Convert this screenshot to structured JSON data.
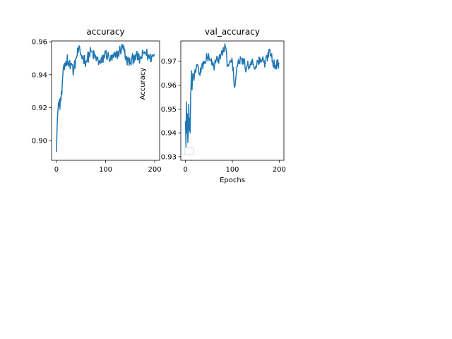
{
  "chart_data": [
    {
      "type": "line",
      "title": "accuracy",
      "xlabel": "",
      "ylabel": "",
      "xlim": [
        -10,
        210
      ],
      "ylim": [
        0.888,
        0.9605
      ],
      "xticks": [
        0,
        100,
        200
      ],
      "yticks": [
        0.9,
        0.92,
        0.94,
        0.96
      ],
      "ytick_labels": [
        "0.90",
        "0.92",
        "0.94",
        "0.96"
      ],
      "series_color": "#1f77b4",
      "keypoints": [
        [
          0,
          0.893
        ],
        [
          1,
          0.905
        ],
        [
          2,
          0.914
        ],
        [
          3,
          0.918
        ],
        [
          4,
          0.923
        ],
        [
          5,
          0.921
        ],
        [
          6,
          0.925
        ],
        [
          7,
          0.919
        ],
        [
          8,
          0.926
        ],
        [
          9,
          0.924
        ],
        [
          10,
          0.93
        ],
        [
          11,
          0.928
        ],
        [
          12,
          0.936
        ],
        [
          13,
          0.94
        ],
        [
          14,
          0.944
        ],
        [
          15,
          0.946
        ],
        [
          16,
          0.943
        ],
        [
          17,
          0.947
        ],
        [
          18,
          0.945
        ],
        [
          19,
          0.948
        ],
        [
          20,
          0.946
        ],
        [
          22,
          0.952
        ],
        [
          25,
          0.945
        ],
        [
          30,
          0.947
        ],
        [
          35,
          0.942
        ],
        [
          40,
          0.95
        ],
        [
          45,
          0.955
        ],
        [
          50,
          0.952
        ],
        [
          60,
          0.948
        ],
        [
          70,
          0.954
        ],
        [
          80,
          0.95
        ],
        [
          90,
          0.947
        ],
        [
          100,
          0.953
        ],
        [
          110,
          0.949
        ],
        [
          120,
          0.951
        ],
        [
          130,
          0.955
        ],
        [
          137,
          0.958
        ],
        [
          140,
          0.95
        ],
        [
          150,
          0.947
        ],
        [
          160,
          0.952
        ],
        [
          170,
          0.949
        ],
        [
          180,
          0.954
        ],
        [
          190,
          0.95
        ],
        [
          200,
          0.952
        ]
      ],
      "noise": 0.0035
    },
    {
      "type": "line",
      "title": "val_accuracy",
      "xlabel": "Epochs",
      "ylabel": "Accuracy",
      "xlim": [
        -10,
        210
      ],
      "ylim": [
        0.9285,
        0.9785
      ],
      "xticks": [
        0,
        100,
        200
      ],
      "yticks": [
        0.93,
        0.94,
        0.95,
        0.96,
        0.97
      ],
      "ytick_labels": [
        "0.93",
        "0.94",
        "0.95",
        "0.96",
        "0.97"
      ],
      "series_color": "#1f77b4",
      "legend": {
        "placement": "lower-left",
        "entries": []
      },
      "keypoints": [
        [
          0,
          0.945
        ],
        [
          1,
          0.934
        ],
        [
          2,
          0.953
        ],
        [
          3,
          0.94
        ],
        [
          4,
          0.948
        ],
        [
          5,
          0.936
        ],
        [
          6,
          0.94
        ],
        [
          7,
          0.952
        ],
        [
          8,
          0.941
        ],
        [
          9,
          0.946
        ],
        [
          10,
          0.94
        ],
        [
          11,
          0.955
        ],
        [
          12,
          0.961
        ],
        [
          13,
          0.966
        ],
        [
          14,
          0.958
        ],
        [
          15,
          0.963
        ],
        [
          16,
          0.965
        ],
        [
          18,
          0.962
        ],
        [
          20,
          0.966
        ],
        [
          25,
          0.968
        ],
        [
          30,
          0.965
        ],
        [
          40,
          0.97
        ],
        [
          50,
          0.972
        ],
        [
          60,
          0.968
        ],
        [
          70,
          0.971
        ],
        [
          80,
          0.974
        ],
        [
          85,
          0.976
        ],
        [
          90,
          0.968
        ],
        [
          100,
          0.97
        ],
        [
          105,
          0.959
        ],
        [
          110,
          0.968
        ],
        [
          120,
          0.971
        ],
        [
          130,
          0.967
        ],
        [
          140,
          0.97
        ],
        [
          150,
          0.968
        ],
        [
          160,
          0.971
        ],
        [
          170,
          0.969
        ],
        [
          180,
          0.975
        ],
        [
          190,
          0.968
        ],
        [
          200,
          0.969
        ]
      ],
      "noise": 0.0022
    }
  ]
}
